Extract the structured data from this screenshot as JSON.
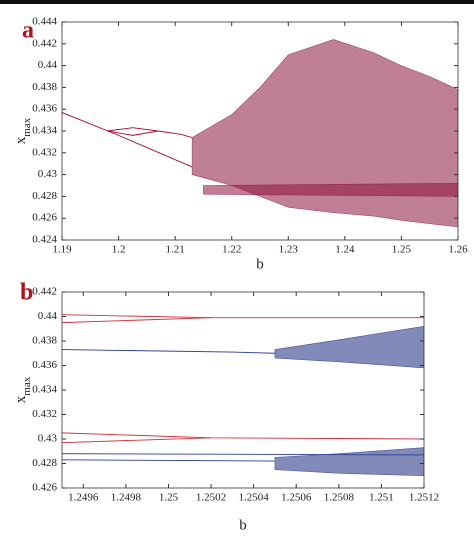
{
  "chart_data": [
    {
      "type": "line",
      "panel_label": "a",
      "xlabel": "b",
      "ylabel": "x",
      "ylabel_sub": "max",
      "xlim": [
        1.19,
        1.26
      ],
      "xticks": [
        1.19,
        1.2,
        1.21,
        1.22,
        1.23,
        1.24,
        1.25,
        1.26
      ],
      "ylim": [
        0.424,
        0.444
      ],
      "yticks": [
        0.424,
        0.426,
        0.428,
        0.43,
        0.432,
        0.434,
        0.436,
        0.438,
        0.44,
        0.442,
        0.444
      ],
      "series": [
        {
          "color": "#a01030",
          "x": [
            1.19,
            1.2,
            1.213
          ],
          "values": [
            0.4357,
            0.4336,
            0.4307
          ]
        },
        {
          "color": "#a01030",
          "x": [
            1.198,
            1.2025,
            1.207
          ],
          "values": [
            0.434,
            0.4343,
            0.434
          ]
        },
        {
          "color": "#a01030",
          "x": [
            1.198,
            1.2025,
            1.207
          ],
          "values": [
            0.434,
            0.4336,
            0.434
          ]
        },
        {
          "color": "#a01030",
          "x": [
            1.207,
            1.211,
            1.213
          ],
          "values": [
            0.434,
            0.4337,
            0.4334
          ]
        }
      ],
      "bands": [
        {
          "color": "#8a1840",
          "x": [
            1.213,
            1.22,
            1.225,
            1.23,
            1.238,
            1.245,
            1.25,
            1.255,
            1.26
          ],
          "low": [
            0.43,
            0.429,
            0.428,
            0.427,
            0.4265,
            0.4262,
            0.4258,
            0.4255,
            0.4252
          ],
          "high": [
            0.4334,
            0.4355,
            0.438,
            0.441,
            0.4424,
            0.4412,
            0.44,
            0.439,
            0.4378
          ]
        },
        {
          "color": "#90103a",
          "x": [
            1.215,
            1.26
          ],
          "low": [
            0.4282,
            0.428
          ],
          "high": [
            0.429,
            0.4292
          ]
        }
      ]
    },
    {
      "type": "line",
      "panel_label": "b",
      "xlabel": "b",
      "ylabel": "x",
      "ylabel_sub": "max",
      "xlim": [
        1.2495,
        1.2512
      ],
      "xticks": [
        1.2496,
        1.2498,
        1.25,
        1.2502,
        1.2504,
        1.2506,
        1.2508,
        1.251,
        1.2512
      ],
      "ylim": [
        0.426,
        0.442
      ],
      "yticks": [
        0.426,
        0.428,
        0.43,
        0.432,
        0.434,
        0.436,
        0.438,
        0.44,
        0.442
      ],
      "series": [
        {
          "color": "#d03040",
          "x": [
            1.2495,
            1.2502,
            1.2512
          ],
          "values": [
            0.44015,
            0.4399,
            0.4399
          ]
        },
        {
          "color": "#d03040",
          "x": [
            1.2495,
            1.2502
          ],
          "values": [
            0.4395,
            0.4399
          ]
        },
        {
          "color": "#2a3a90",
          "x": [
            1.2495,
            1.2503,
            1.2505
          ],
          "values": [
            0.4373,
            0.4371,
            0.437
          ]
        },
        {
          "color": "#d03040",
          "x": [
            1.2495,
            1.2502,
            1.2512
          ],
          "values": [
            0.4305,
            0.4301,
            0.43
          ]
        },
        {
          "color": "#d03040",
          "x": [
            1.2495,
            1.2502
          ],
          "values": [
            0.4297,
            0.4301
          ]
        },
        {
          "color": "#2a3a90",
          "x": [
            1.2495,
            1.2512
          ],
          "values": [
            0.4288,
            0.4287
          ]
        },
        {
          "color": "#2a3a90",
          "x": [
            1.2495,
            1.2505
          ],
          "values": [
            0.4283,
            0.4282
          ]
        }
      ],
      "bands": [
        {
          "color": "#1a2a80",
          "x": [
            1.2505,
            1.2508,
            1.2512
          ],
          "low": [
            0.4366,
            0.4363,
            0.4358
          ],
          "high": [
            0.4373,
            0.4381,
            0.4392
          ]
        },
        {
          "color": "#1a2a80",
          "x": [
            1.2505,
            1.2508,
            1.2512
          ],
          "low": [
            0.4275,
            0.4272,
            0.427
          ],
          "high": [
            0.4285,
            0.4288,
            0.4293
          ]
        }
      ]
    }
  ]
}
